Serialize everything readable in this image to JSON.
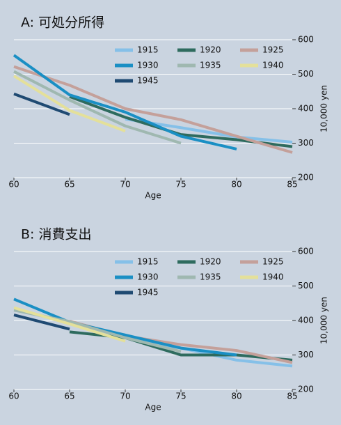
{
  "chart_data": [
    {
      "type": "line",
      "title": "A: 可処分所得",
      "x_label": "Age",
      "y_label": "10,000 yen",
      "xlim": [
        60,
        85
      ],
      "xticks": [
        60,
        65,
        70,
        75,
        80,
        85
      ],
      "ylim": [
        200,
        600
      ],
      "yticks": [
        200,
        300,
        400,
        500,
        600
      ],
      "grid": true,
      "series": [
        {
          "name": "1915",
          "color": "#85c0e8",
          "x": [
            70,
            75,
            80,
            85
          ],
          "values": [
            370,
            345,
            318,
            303
          ]
        },
        {
          "name": "1920",
          "color": "#2e6b5e",
          "x": [
            65,
            70,
            75,
            80,
            85
          ],
          "values": [
            435,
            375,
            325,
            310,
            290
          ]
        },
        {
          "name": "1925",
          "color": "#c4a09a",
          "x": [
            60,
            65,
            70,
            75,
            80,
            85
          ],
          "values": [
            522,
            468,
            400,
            368,
            320,
            273
          ]
        },
        {
          "name": "1930",
          "color": "#1a8fc4",
          "x": [
            60,
            65,
            70,
            75,
            80
          ],
          "values": [
            555,
            440,
            390,
            320,
            283
          ]
        },
        {
          "name": "1935",
          "color": "#9fb8b0",
          "x": [
            60,
            65,
            70,
            75
          ],
          "values": [
            508,
            425,
            350,
            300
          ]
        },
        {
          "name": "1940",
          "color": "#e4e09a",
          "x": [
            60,
            65,
            70
          ],
          "values": [
            495,
            395,
            335
          ]
        },
        {
          "name": "1945",
          "color": "#1f4a72",
          "x": [
            60,
            65
          ],
          "values": [
            443,
            383
          ]
        }
      ]
    },
    {
      "type": "line",
      "title": "B: 消費支出",
      "x_label": "Age",
      "y_label": "10,000 yen",
      "xlim": [
        60,
        85
      ],
      "xticks": [
        60,
        65,
        70,
        75,
        80,
        85
      ],
      "ylim": [
        200,
        600
      ],
      "yticks": [
        200,
        300,
        400,
        500,
        600
      ],
      "grid": true,
      "series": [
        {
          "name": "1915",
          "color": "#85c0e8",
          "x": [
            70,
            75,
            80,
            85
          ],
          "values": [
            350,
            320,
            285,
            268
          ]
        },
        {
          "name": "1920",
          "color": "#2e6b5e",
          "x": [
            65,
            70,
            75,
            80,
            85
          ],
          "values": [
            367,
            350,
            300,
            300,
            285
          ]
        },
        {
          "name": "1925",
          "color": "#c4a09a",
          "x": [
            65,
            70,
            75,
            80,
            85
          ],
          "values": [
            398,
            355,
            330,
            313,
            278
          ]
        },
        {
          "name": "1930",
          "color": "#1a8fc4",
          "x": [
            60,
            65,
            70,
            75,
            80
          ],
          "values": [
            462,
            395,
            358,
            320,
            300
          ]
        },
        {
          "name": "1935",
          "color": "#9fb8b0",
          "x": [
            60,
            65,
            70,
            75
          ],
          "values": [
            430,
            397,
            350,
            310
          ]
        },
        {
          "name": "1940",
          "color": "#e4e09a",
          "x": [
            60,
            65,
            70
          ],
          "values": [
            437,
            390,
            340
          ]
        },
        {
          "name": "1945",
          "color": "#1f4a72",
          "x": [
            60,
            65
          ],
          "values": [
            416,
            375
          ]
        }
      ]
    }
  ]
}
